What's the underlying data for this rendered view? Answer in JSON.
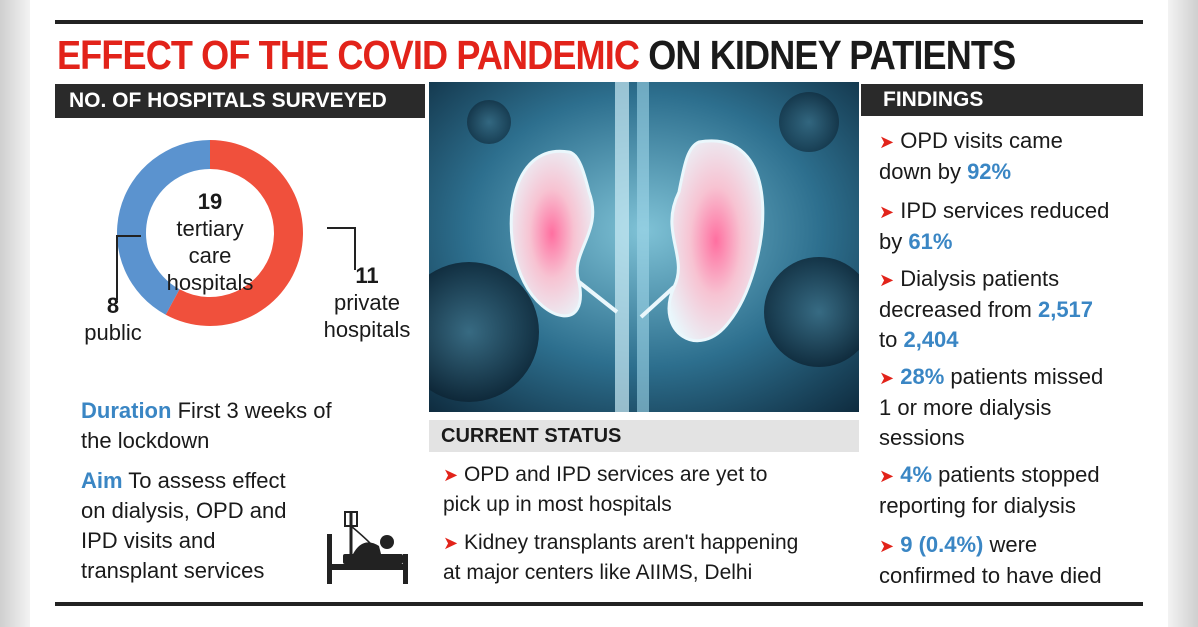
{
  "title": {
    "part1": "EFFECT OF THE COVID PANDEMIC",
    "part2": "ON KIDNEY PATIENTS"
  },
  "left_header": "NO. OF HOSPITALS SURVEYED",
  "chart_data": {
    "type": "pie",
    "categories": [
      "public",
      "private hospitals"
    ],
    "values": [
      8,
      11
    ],
    "total_label": [
      "19",
      "tertiary",
      "care",
      "hospitals"
    ],
    "slice_labels": [
      {
        "value": "8",
        "text": "public"
      },
      {
        "value": "11",
        "text": [
          "private",
          "hospitals"
        ]
      }
    ],
    "colors": [
      "#5b93cf",
      "#f0503c"
    ]
  },
  "duration": {
    "key": "Duration",
    "text1": "First 3 weeks of",
    "text2": "the lockdown"
  },
  "aim": {
    "key": "Aim",
    "lines": [
      "To assess effect",
      "on dialysis, OPD and",
      "IPD visits and",
      "transplant services"
    ]
  },
  "current_status": {
    "header": "CURRENT STATUS",
    "items": [
      [
        "OPD and IPD services are yet to",
        "pick up in most hospitals"
      ],
      [
        "Kidney transplants aren't happening",
        "at major centers like AIIMS, Delhi"
      ]
    ]
  },
  "findings": {
    "header": "FINDINGS",
    "f1": {
      "a": "OPD visits came",
      "b": "down by ",
      "hl": "92%"
    },
    "f2": {
      "a": "IPD services reduced",
      "b": "by ",
      "hl": "61%"
    },
    "f3": {
      "a": "Dialysis patients",
      "b": "decreased from ",
      "hl1": "2,517",
      "c": "to ",
      "hl2": "2,404"
    },
    "f4": {
      "hl": "28%",
      "a": " patients missed",
      "b": "1 or more dialysis",
      "c": "sessions"
    },
    "f5": {
      "hl": "4%",
      "a": " patients stopped",
      "b": "reporting for dialysis"
    },
    "f6": {
      "hl": "9 (0.4%)",
      "a": " were",
      "b": "confirmed to have died"
    }
  },
  "colors": {
    "accent_red": "#e2231a",
    "accent_blue": "#3a86c4",
    "bar_dark": "#2a2a2a"
  }
}
